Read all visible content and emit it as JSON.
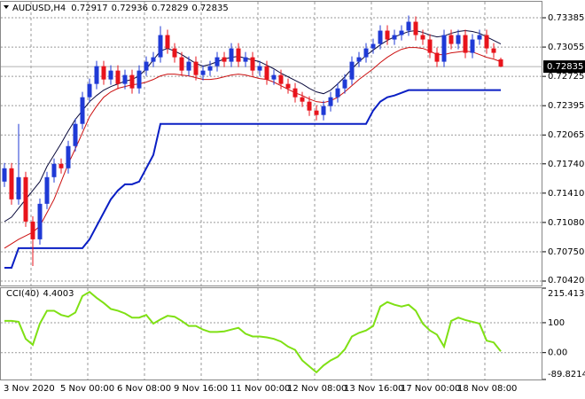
{
  "chart_data": [
    {
      "type": "candlestick",
      "title": "AUDUSD,H4",
      "categories": [
        "3 Nov 2020",
        null,
        null,
        null,
        null,
        null,
        null,
        null,
        "5 Nov 00:00",
        null,
        null,
        null,
        null,
        null,
        null,
        null,
        "6 Nov 08:00",
        null,
        null,
        null,
        null,
        null,
        null,
        null,
        "9 Nov 16:00",
        null,
        null,
        null,
        null,
        null,
        null,
        null,
        "11 Nov 00:00",
        null,
        null,
        null,
        null,
        null,
        null,
        null,
        "12 Nov 08:00",
        null,
        null,
        null,
        null,
        null,
        null,
        null,
        "13 Nov 16:00",
        null,
        null,
        null,
        null,
        null,
        null,
        null,
        "17 Nov 00:00",
        null,
        null,
        null,
        null,
        null,
        null,
        null,
        "18 Nov 08:00",
        null,
        null,
        null,
        null,
        null,
        null
      ],
      "open": [
        0.7154,
        0.7169,
        0.7134,
        0.7159,
        0.7109,
        0.7089,
        0.7129,
        0.7159,
        0.7174,
        0.7169,
        0.7194,
        0.7219,
        0.7249,
        0.7264,
        0.7284,
        0.7269,
        0.7279,
        0.7264,
        0.7274,
        0.7259,
        0.7279,
        0.7289,
        0.7294,
        0.7319,
        0.7304,
        0.7294,
        0.7279,
        0.7289,
        0.7274,
        0.7279,
        0.7284,
        0.7294,
        0.7289,
        0.7304,
        0.7289,
        0.7294,
        0.7279,
        0.7284,
        0.7269,
        0.7274,
        0.7264,
        0.7259,
        0.7249,
        0.7244,
        0.7234,
        0.7229,
        0.7239,
        0.7249,
        0.7259,
        0.7269,
        0.7289,
        0.7294,
        0.7304,
        0.7309,
        0.7324,
        0.7314,
        0.7319,
        0.7324,
        0.7334,
        0.7319,
        0.7314,
        0.7299,
        0.7289,
        0.7319,
        0.7309,
        0.7319,
        0.7299,
        0.7314,
        0.7319,
        0.7304,
        0.72917
      ],
      "high": [
        0.7175,
        0.7175,
        0.7219,
        0.7165,
        0.7115,
        0.7135,
        0.7165,
        0.718,
        0.718,
        0.72,
        0.7225,
        0.7255,
        0.727,
        0.729,
        0.729,
        0.7285,
        0.7285,
        0.728,
        0.728,
        0.7285,
        0.7295,
        0.73,
        0.7329,
        0.7325,
        0.731,
        0.73,
        0.7295,
        0.7295,
        0.7285,
        0.729,
        0.73,
        0.73,
        0.731,
        0.731,
        0.73,
        0.73,
        0.729,
        0.729,
        0.728,
        0.728,
        0.727,
        0.7265,
        0.7255,
        0.725,
        0.724,
        0.7245,
        0.7255,
        0.7265,
        0.7275,
        0.7295,
        0.73,
        0.731,
        0.7315,
        0.733,
        0.733,
        0.7325,
        0.733,
        0.7341,
        0.734,
        0.7325,
        0.732,
        0.7305,
        0.7325,
        0.7325,
        0.7325,
        0.7325,
        0.732,
        0.7325,
        0.7325,
        0.731,
        0.72936
      ],
      "low": [
        0.7148,
        0.7128,
        0.7128,
        0.7103,
        0.7059,
        0.7083,
        0.7123,
        0.7153,
        0.7163,
        0.7163,
        0.7188,
        0.7213,
        0.7243,
        0.7258,
        0.7263,
        0.7263,
        0.7258,
        0.7258,
        0.7253,
        0.7253,
        0.7273,
        0.7283,
        0.7288,
        0.7298,
        0.7288,
        0.7273,
        0.7273,
        0.7268,
        0.7268,
        0.7273,
        0.7278,
        0.7283,
        0.7283,
        0.7283,
        0.7283,
        0.7273,
        0.7273,
        0.7263,
        0.7263,
        0.7258,
        0.7253,
        0.7243,
        0.7238,
        0.7228,
        0.7223,
        0.7223,
        0.7233,
        0.7243,
        0.7253,
        0.7263,
        0.7283,
        0.7288,
        0.7298,
        0.7303,
        0.7308,
        0.7308,
        0.7313,
        0.7318,
        0.7313,
        0.7308,
        0.7293,
        0.7283,
        0.7283,
        0.7303,
        0.7303,
        0.7293,
        0.7293,
        0.7308,
        0.7298,
        0.7293,
        0.72829
      ],
      "close": [
        0.7169,
        0.7134,
        0.7159,
        0.7109,
        0.7089,
        0.7129,
        0.7159,
        0.7174,
        0.7169,
        0.7194,
        0.7219,
        0.7249,
        0.7264,
        0.7284,
        0.7269,
        0.7279,
        0.7264,
        0.7274,
        0.7259,
        0.7279,
        0.7289,
        0.7294,
        0.7319,
        0.7304,
        0.7294,
        0.7279,
        0.7289,
        0.7274,
        0.7279,
        0.7284,
        0.7294,
        0.7289,
        0.7304,
        0.7289,
        0.7294,
        0.7279,
        0.7284,
        0.7269,
        0.7274,
        0.7264,
        0.7259,
        0.7249,
        0.7244,
        0.7234,
        0.7229,
        0.7239,
        0.7249,
        0.7259,
        0.7269,
        0.7289,
        0.7294,
        0.7304,
        0.7309,
        0.7324,
        0.7314,
        0.7319,
        0.7324,
        0.7334,
        0.7319,
        0.7314,
        0.7299,
        0.7289,
        0.7319,
        0.7309,
        0.7319,
        0.7299,
        0.7314,
        0.7319,
        0.7304,
        0.7299,
        0.72835
      ],
      "up_color": "#1f3ad6",
      "down_color": "#e8141c",
      "series": [
        {
          "color": "#0a0a3c",
          "width": 1,
          "values": [
            0.7109,
            0.7114,
            0.7124,
            0.7134,
            0.7144,
            0.7154,
            0.7171,
            0.7184,
            0.7197,
            0.7211,
            0.7224,
            0.7234,
            0.7244,
            0.7251,
            0.7257,
            0.7261,
            0.7264,
            0.7267,
            0.7269,
            0.7273,
            0.7281,
            0.7291,
            0.7301,
            0.7304,
            0.7301,
            0.7297,
            0.7292,
            0.7287,
            0.7284,
            0.7286,
            0.7289,
            0.7292,
            0.7294,
            0.7295,
            0.7293,
            0.7291,
            0.7289,
            0.7285,
            0.7281,
            0.7276,
            0.7272,
            0.7268,
            0.7264,
            0.7259,
            0.7255,
            0.7253,
            0.7257,
            0.7264,
            0.7272,
            0.7281,
            0.7289,
            0.7296,
            0.7302,
            0.7308,
            0.7313,
            0.7317,
            0.732,
            0.7323,
            0.7324,
            0.7322,
            0.7319,
            0.7317,
            0.7318,
            0.7321,
            0.7323,
            0.7324,
            0.7323,
            0.7321,
            0.7317,
            0.7313,
            0.7309
          ]
        },
        {
          "color": "#cc1010",
          "width": 1,
          "values": [
            0.7079,
            0.7084,
            0.7089,
            0.7093,
            0.7097,
            0.7104,
            0.7119,
            0.7134,
            0.7154,
            0.7174,
            0.7191,
            0.7209,
            0.7227,
            0.7239,
            0.7249,
            0.7255,
            0.7259,
            0.7261,
            0.7263,
            0.7264,
            0.7266,
            0.7269,
            0.7273,
            0.7275,
            0.7275,
            0.7274,
            0.7273,
            0.7271,
            0.7269,
            0.7269,
            0.727,
            0.7272,
            0.7274,
            0.7275,
            0.7274,
            0.7272,
            0.727,
            0.7269,
            0.7266,
            0.7262,
            0.7258,
            0.7254,
            0.7251,
            0.7247,
            0.7244,
            0.7243,
            0.7245,
            0.7249,
            0.7255,
            0.7262,
            0.7269,
            0.7275,
            0.7281,
            0.7288,
            0.7294,
            0.7299,
            0.7303,
            0.7305,
            0.7305,
            0.7304,
            0.7301,
            0.7297,
            0.7297,
            0.7299,
            0.73,
            0.7301,
            0.73,
            0.7297,
            0.7294,
            0.7292,
            0.7289
          ]
        },
        {
          "color": "#0a1fc4",
          "width": 2,
          "values": [
            0.7057,
            0.7057,
            0.7079,
            0.7079,
            0.7079,
            0.7079,
            0.7079,
            0.7079,
            0.7079,
            0.7079,
            0.7079,
            0.7079,
            0.7089,
            0.7104,
            0.7119,
            0.7134,
            0.7144,
            0.7151,
            0.7151,
            0.7154,
            0.7169,
            0.7184,
            0.7219,
            0.7219,
            0.7219,
            0.7219,
            0.7219,
            0.7219,
            0.7219,
            0.7219,
            0.7219,
            0.7219,
            0.7219,
            0.7219,
            0.7219,
            0.7219,
            0.7219,
            0.7219,
            0.7219,
            0.7219,
            0.7219,
            0.7219,
            0.7219,
            0.7219,
            0.7219,
            0.7219,
            0.7219,
            0.7219,
            0.7219,
            0.7219,
            0.7219,
            0.7219,
            0.7234,
            0.7244,
            0.7249,
            0.7251,
            0.7254,
            0.7257,
            0.7257,
            0.7257,
            0.7257,
            0.7257,
            0.7257,
            0.7257,
            0.7257,
            0.7257,
            0.7257,
            0.7257,
            0.7257,
            0.7257,
            0.7257
          ]
        }
      ],
      "ylim": [
        0.7037,
        0.73565
      ],
      "yticks": [
        0.73385,
        0.73055,
        0.72725,
        0.72395,
        0.72065,
        {
          "value": 0.7174,
          "label": "0.71740"
        },
        {
          "value": 0.7141,
          "label": "0.71410"
        },
        {
          "value": 0.7108,
          "label": "0.71080"
        },
        {
          "value": 0.7075,
          "label": "0.70750"
        },
        {
          "value": 0.7042,
          "label": "0.70420"
        }
      ],
      "grid": true
    },
    {
      "type": "line",
      "title": "CCI(40)",
      "color": "#7fe014",
      "values": [
        106,
        106,
        103,
        46,
        26,
        97,
        140,
        140,
        126,
        120,
        134,
        189,
        203,
        183,
        166,
        146,
        140,
        131,
        117,
        117,
        126,
        97,
        111,
        123,
        120,
        106,
        89,
        89,
        77,
        69,
        69,
        71,
        77,
        83,
        63,
        54,
        54,
        51,
        46,
        37,
        20,
        9,
        -26,
        -46,
        -66,
        -43,
        -26,
        -14,
        11,
        54,
        66,
        74,
        89,
        154,
        169,
        160,
        154,
        160,
        140,
        97,
        74,
        60,
        20,
        106,
        117,
        109,
        103,
        97,
        40,
        34,
        4.4003
      ],
      "ylim": [
        -89.8214,
        215.413
      ],
      "yticks": [
        215.413,
        100,
        {
          "value": 0,
          "label": "0.00"
        },
        -89.8214
      ],
      "grid": true
    }
  ]
}
